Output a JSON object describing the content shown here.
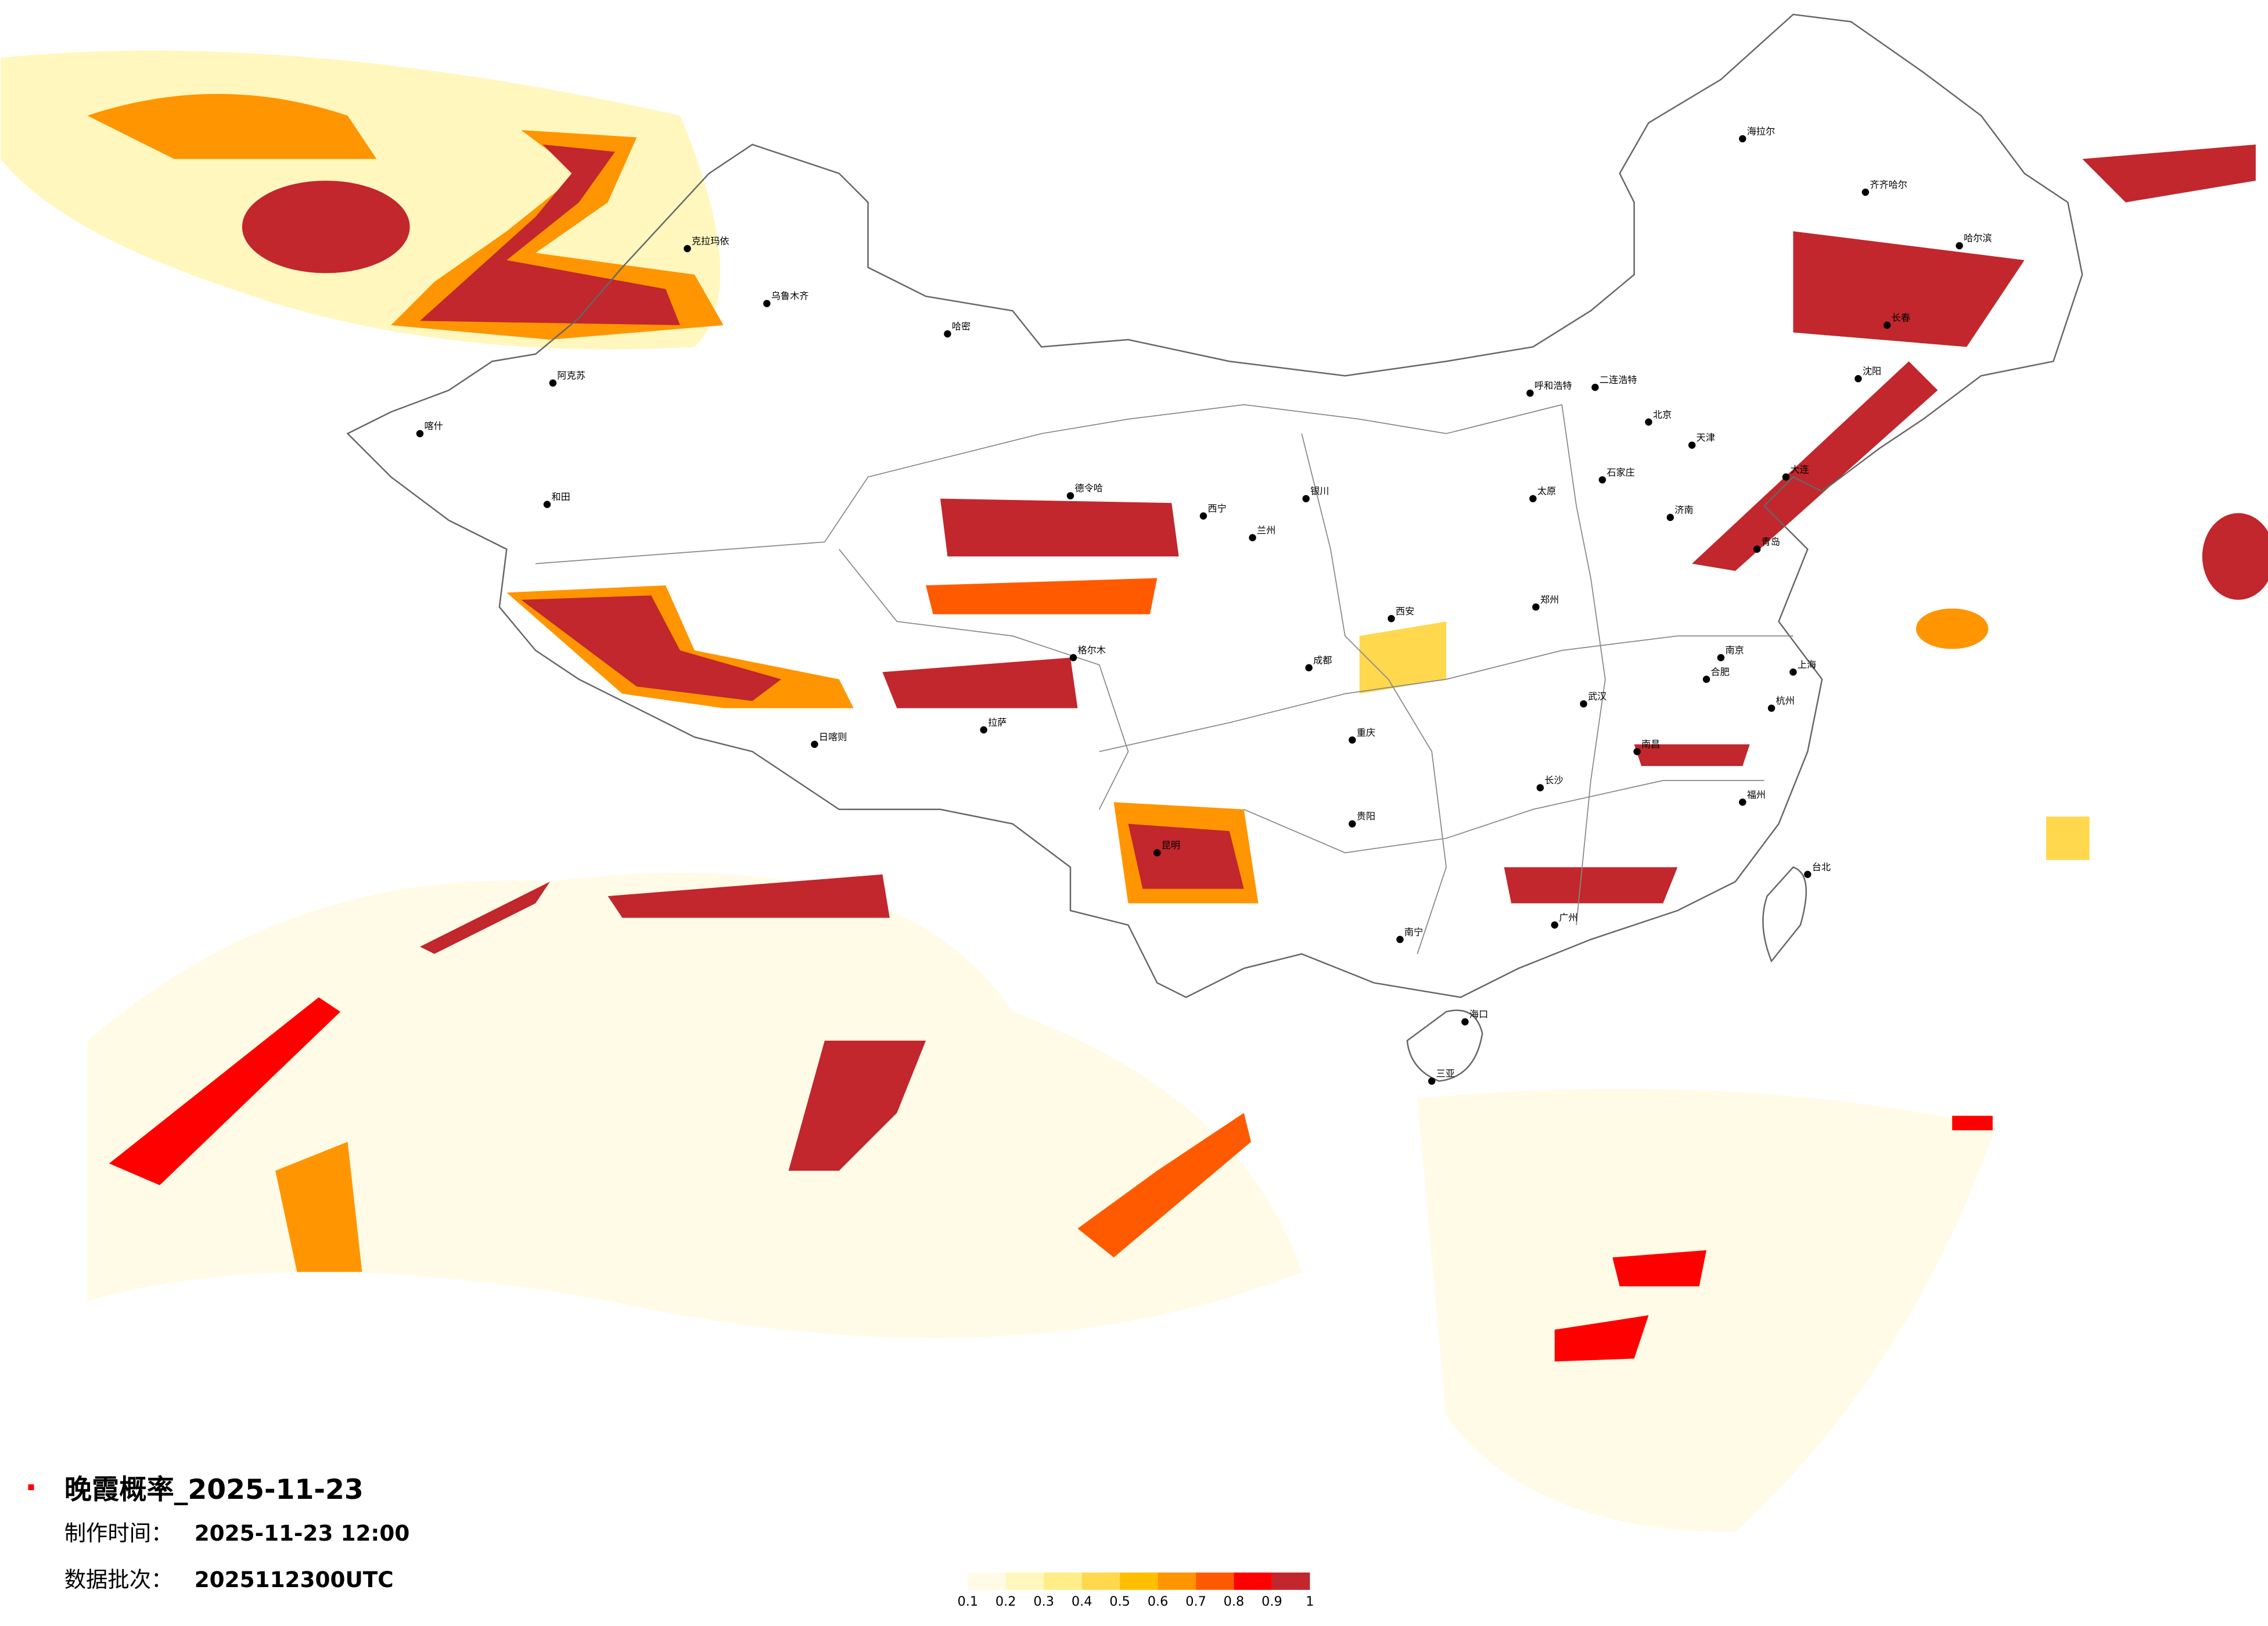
{
  "map": {
    "title": "晚霞概率_2025-11-23",
    "made_label": "制作时间：",
    "made_time": "2025-11-23 12:00",
    "batch_label": "数据批次：",
    "batch": "2025112300UTC",
    "legend": {
      "ticks": [
        0.1,
        0.2,
        0.3,
        0.4,
        0.5,
        0.6,
        0.7,
        0.8,
        0.9,
        1
      ],
      "colors": [
        "#fffbe6",
        "#fff7bd",
        "#ffee88",
        "#ffd84e",
        "#ffbf00",
        "#ff9500",
        "#ff5a00",
        "#ff0000",
        "#c1272d"
      ]
    },
    "cities": [
      "北京",
      "天津",
      "石家庄",
      "太原",
      "呼和浩特",
      "济南",
      "郑州",
      "西安",
      "银川",
      "兰州",
      "西宁",
      "成都",
      "重庆",
      "贵阳",
      "昆明",
      "南宁",
      "海口",
      "三亚",
      "长沙",
      "武汉",
      "南昌",
      "合肥",
      "南京",
      "杭州",
      "上海",
      "福州",
      "台北",
      "广州",
      "沈阳",
      "长春",
      "哈尔滨",
      "齐齐哈尔",
      "海拉尔",
      "乌鲁木齐",
      "克拉玛依",
      "哈密",
      "阿克苏",
      "喀什",
      "和田",
      "拉萨",
      "日喀则",
      "格尔木",
      "德令哈",
      "二连浩特",
      "大连",
      "青岛"
    ]
  }
}
